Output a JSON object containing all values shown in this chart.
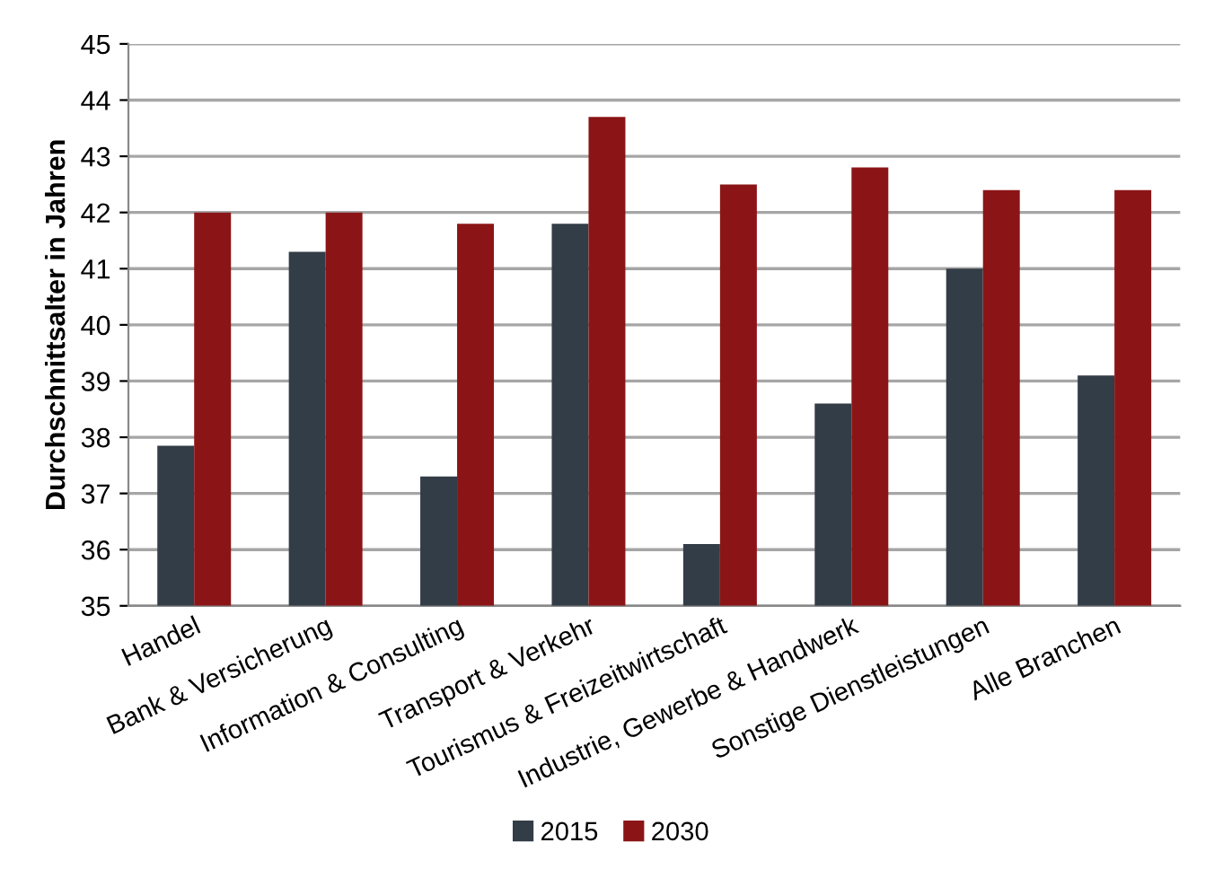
{
  "chart_data": {
    "type": "bar",
    "ylabel": "Durchschnittsalter in Jahren",
    "categories": [
      "Handel",
      "Bank & Versicherung",
      "Information & Consulting",
      "Transport & Verkehr",
      "Tourismus & Freizeitwirtschaft",
      "Industrie, Gewerbe & Handwerk",
      "Sonstige Dienstleistungen",
      "Alle Branchen"
    ],
    "series": [
      {
        "name": "2015",
        "color": "#333d47",
        "values": [
          37.85,
          41.3,
          37.3,
          41.8,
          36.1,
          38.6,
          41.0,
          39.1
        ]
      },
      {
        "name": "2030",
        "color": "#8b1516",
        "values": [
          42.0,
          42.0,
          41.8,
          43.7,
          42.5,
          42.8,
          42.4,
          42.4
        ]
      }
    ],
    "ylim": [
      35,
      45
    ],
    "yticks": [
      35,
      36,
      37,
      38,
      39,
      40,
      41,
      42,
      43,
      44,
      45
    ],
    "grid": "y",
    "legend": "bottom"
  }
}
